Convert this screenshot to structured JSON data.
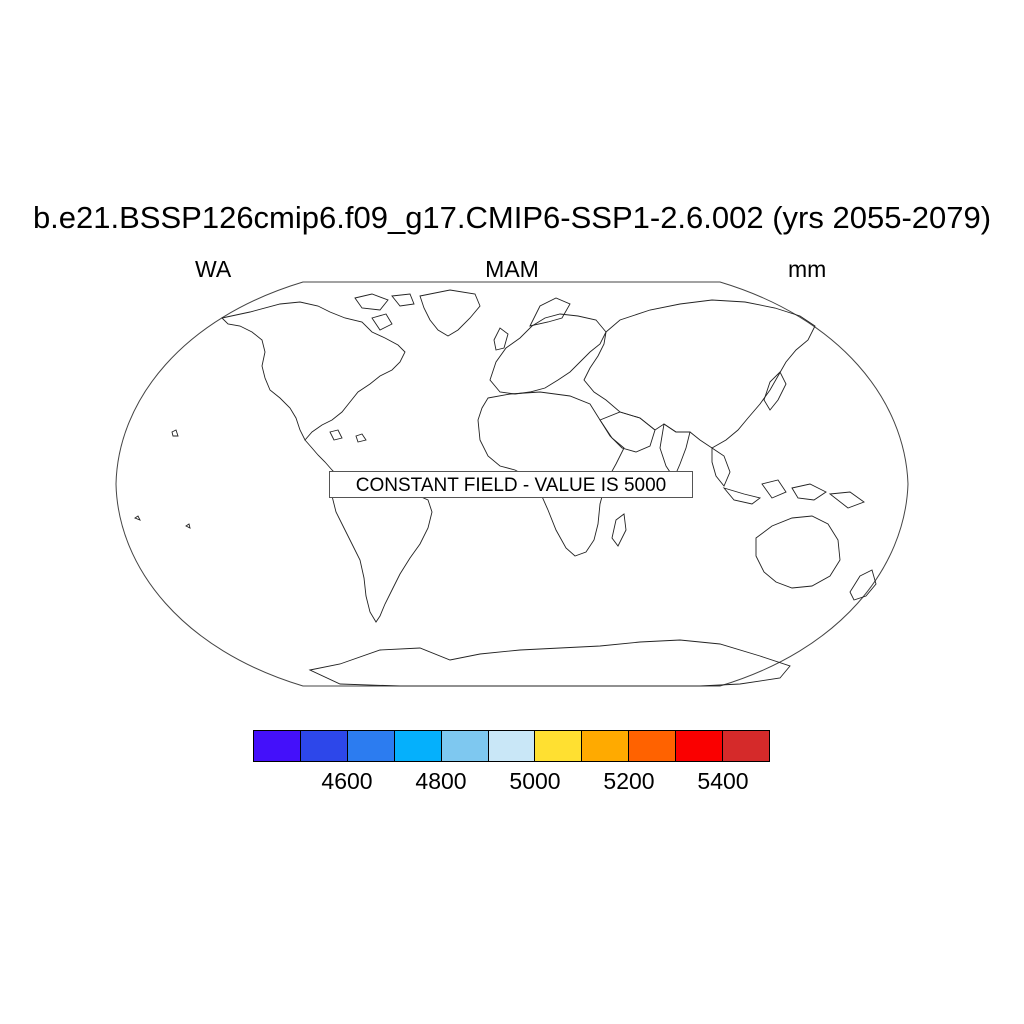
{
  "title": "b.e21.BSSP126cmip6.f09_g17.CMIP6-SSP1-2.6.002 (yrs 2055-2079)",
  "subtitle_left": "WA",
  "subtitle_center": "MAM",
  "subtitle_right": "mm",
  "notice": "CONSTANT FIELD - VALUE IS 5000",
  "colorbar": {
    "colors": [
      "#4410fa",
      "#2d47ea",
      "#2c7cf0",
      "#05b0fc",
      "#7ec8f0",
      "#c9e7f7",
      "#ffe031",
      "#ffaa00",
      "#ff6200",
      "#fa0000",
      "#d52a2a"
    ],
    "ticks": [
      "4600",
      "4800",
      "5000",
      "5200",
      "5400"
    ]
  }
}
